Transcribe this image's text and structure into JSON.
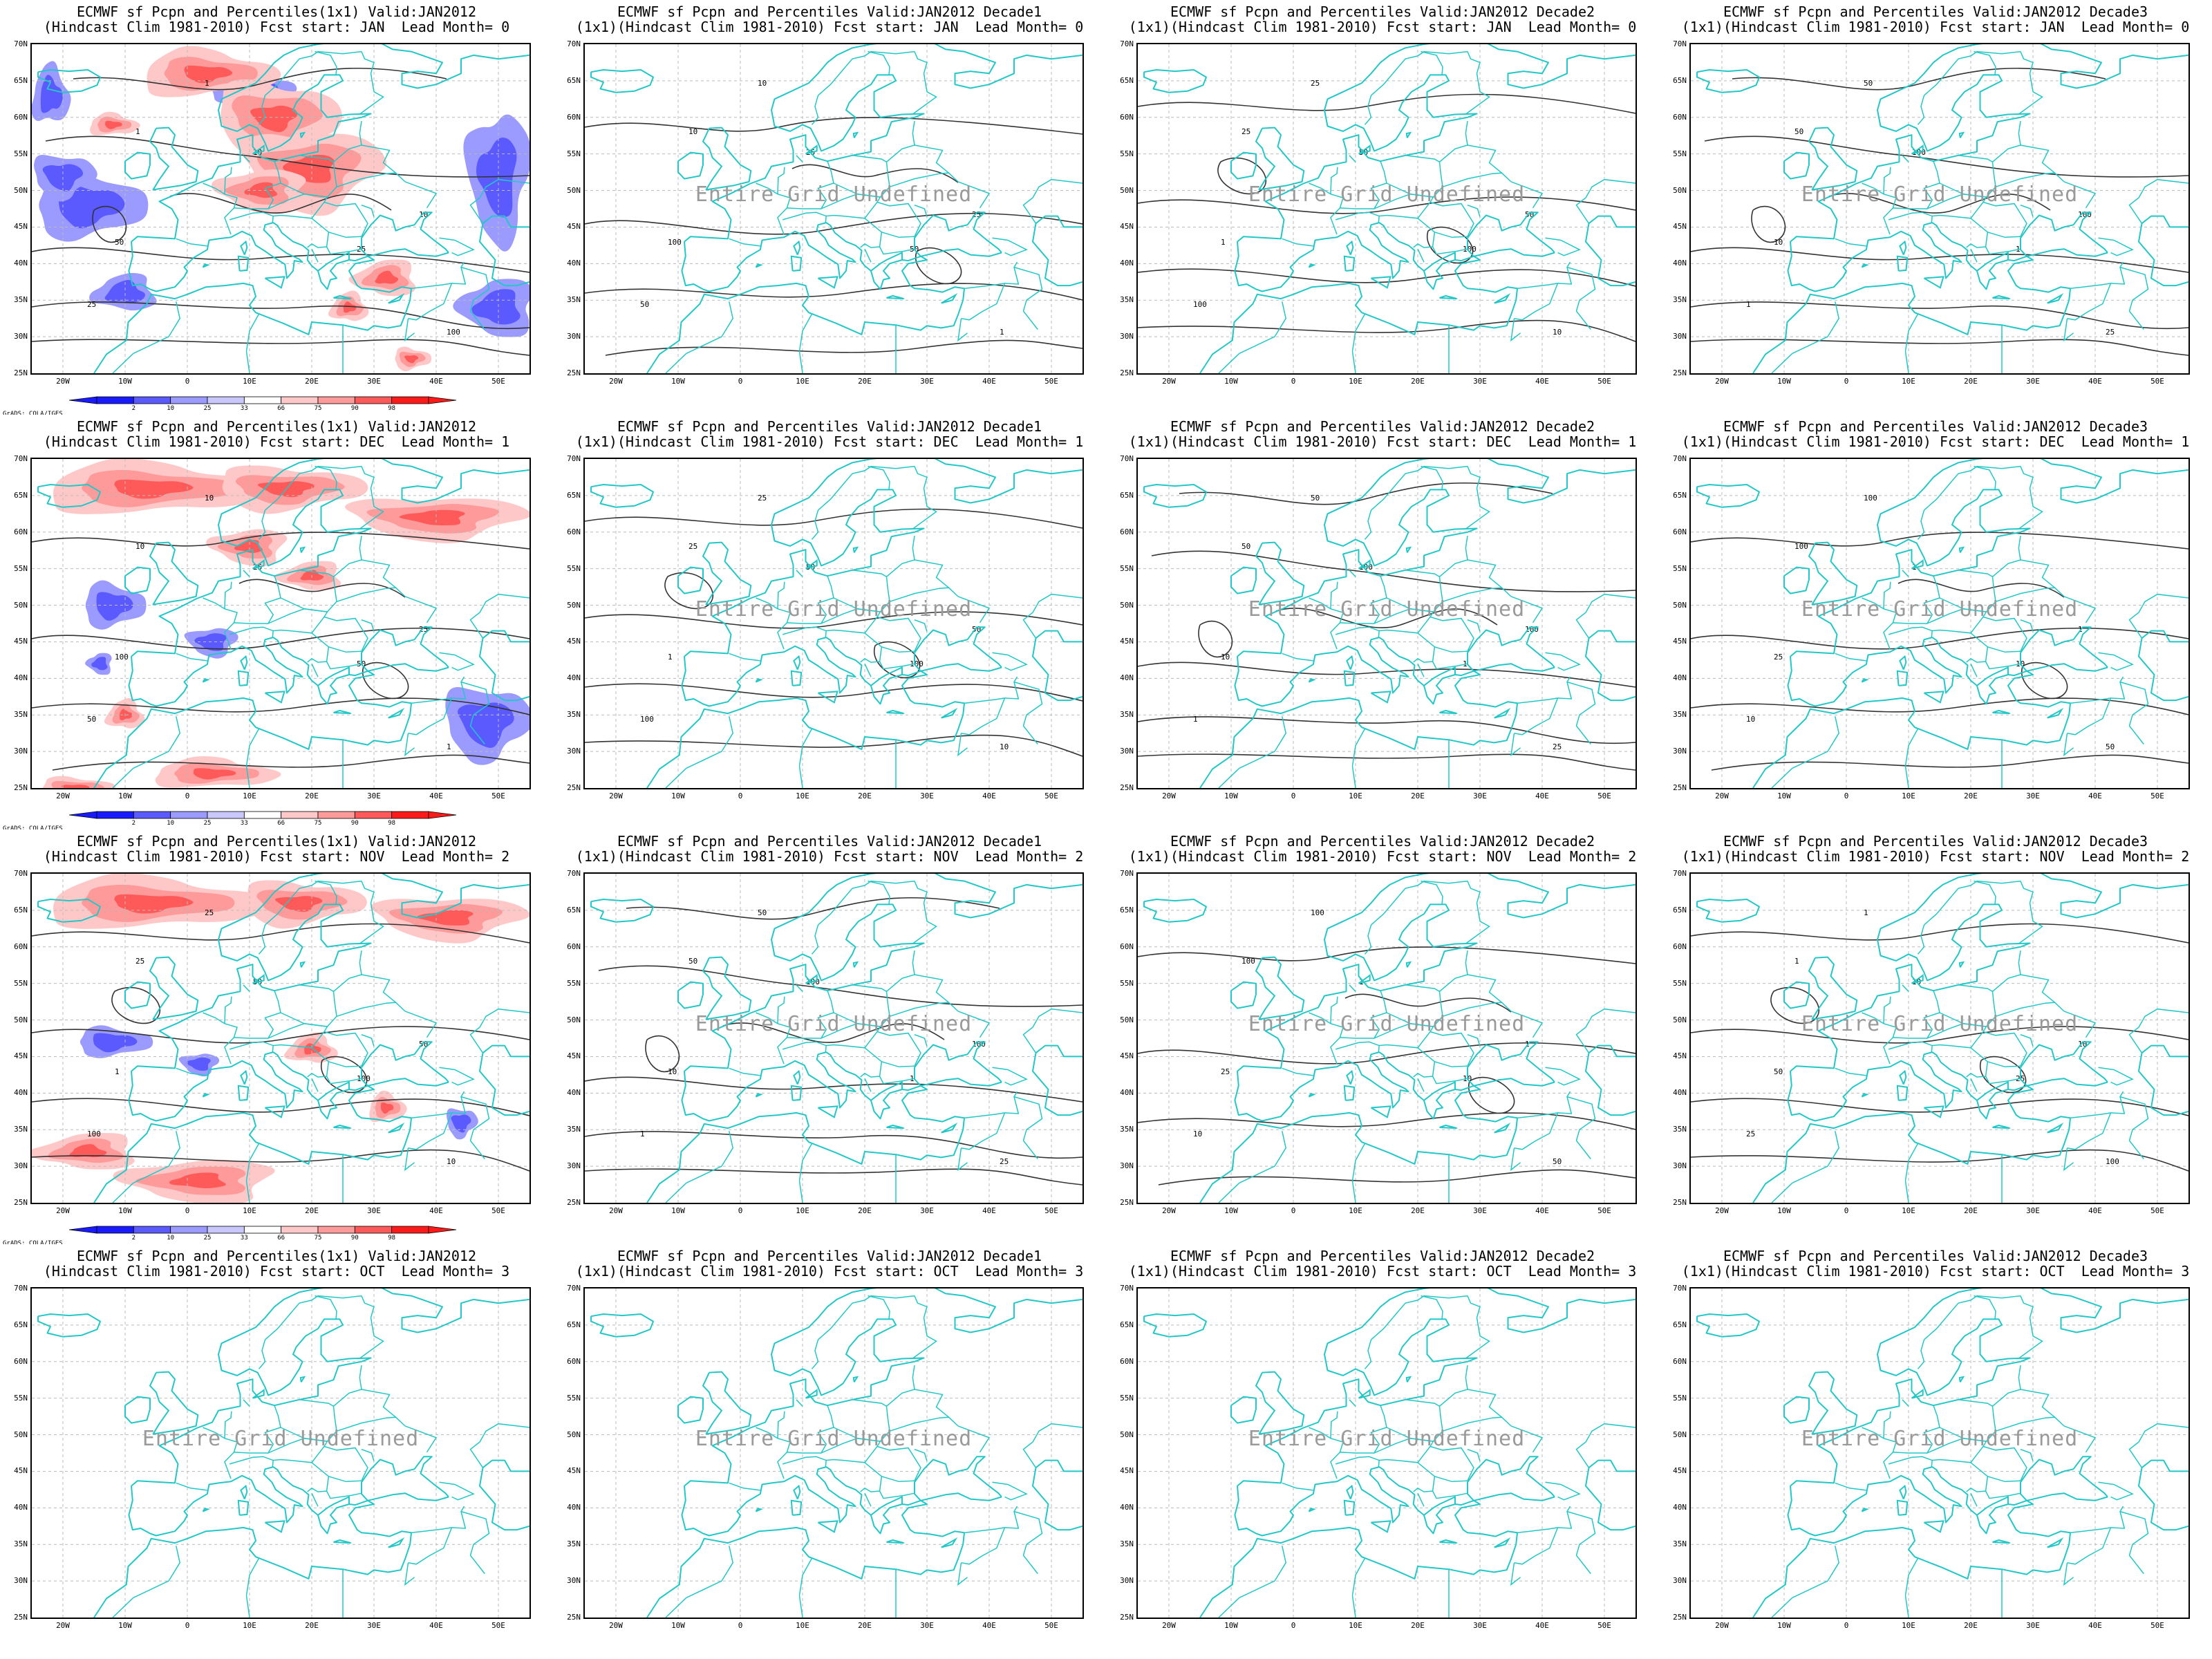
{
  "title_variable": "ECMWF sf Pcpn and Percentiles",
  "valid": "JAN2012",
  "hindcast": "(Hindcast Clim 1981-2010)",
  "undefined_text": "Entire Grid Undefined",
  "credit": "GrADS: COLA/IGES",
  "lat_labels": [
    "70N",
    "65N",
    "60N",
    "55N",
    "50N",
    "45N",
    "40N",
    "35N",
    "30N",
    "25N"
  ],
  "lon_labels": [
    "20W",
    "10W",
    "0",
    "10E",
    "20E",
    "30E",
    "40E",
    "50E"
  ],
  "colorbar": {
    "values": [
      "2",
      "10",
      "25",
      "33",
      "66",
      "75",
      "90",
      "98"
    ],
    "colors": [
      "#1a1aff",
      "#5a5aff",
      "#9a9aff",
      "#c8c8ff",
      "#ffffff",
      "#ffc8c8",
      "#ff9a9a",
      "#ff5a5a",
      "#ff1a1a"
    ]
  },
  "rows": [
    {
      "fcst_start": "JAN",
      "lead": "0",
      "has_monthly_map": true,
      "title1": "ECMWF sf Pcpn and Percentiles(1x1) Valid:JAN2012",
      "title2": "(Hindcast Clim 1981-2010) Fcst start: JAN  Lead Month= 0",
      "decade_title2": "(1x1)(Hindcast Clim 1981-2010) Fcst start: JAN  Lead Month= 0"
    },
    {
      "fcst_start": "DEC",
      "lead": "1",
      "has_monthly_map": true,
      "title1": "ECMWF sf Pcpn and Percentiles(1x1) Valid:JAN2012",
      "title2": "(Hindcast Clim 1981-2010) Fcst start: DEC  Lead Month= 1",
      "decade_title2": "(1x1)(Hindcast Clim 1981-2010) Fcst start: DEC  Lead Month= 1"
    },
    {
      "fcst_start": "NOV",
      "lead": "2",
      "has_monthly_map": true,
      "title1": "ECMWF sf Pcpn and Percentiles(1x1) Valid:JAN2012",
      "title2": "(Hindcast Clim 1981-2010) Fcst start: NOV  Lead Month= 2",
      "decade_title2": "(1x1)(Hindcast Clim 1981-2010) Fcst start: NOV  Lead Month= 2"
    },
    {
      "fcst_start": "OCT",
      "lead": "3",
      "has_monthly_map": false,
      "title1": "ECMWF sf Pcpn and Percentiles(1x1) Valid:JAN2012",
      "title2": "(Hindcast Clim 1981-2010) Fcst start: OCT  Lead Month= 3",
      "decade_title2": "(1x1)(Hindcast Clim 1981-2010) Fcst start: OCT  Lead Month= 3"
    }
  ],
  "decade_titles": [
    "ECMWF sf Pcpn and Percentiles Valid:JAN2012 Decade1",
    "ECMWF sf Pcpn and Percentiles Valid:JAN2012 Decade2",
    "ECMWF sf Pcpn and Percentiles Valid:JAN2012 Decade3"
  ],
  "contour_labels": [
    "1",
    "10",
    "25",
    "50",
    "100"
  ],
  "colors": {
    "coast": "#22c7c7",
    "contour": "#333333",
    "grid": "#bbbbbb"
  }
}
